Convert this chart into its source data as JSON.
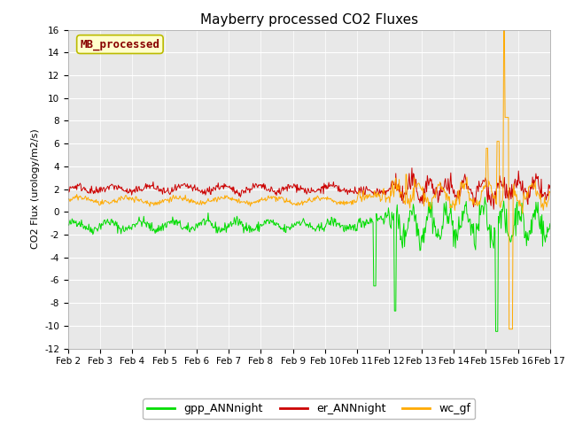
{
  "title": "Mayberry processed CO2 Fluxes",
  "ylabel": "CO2 Flux (urology/m2/s)",
  "ylim": [
    -12,
    16
  ],
  "yticks": [
    -12,
    -10,
    -8,
    -6,
    -4,
    -2,
    0,
    2,
    4,
    6,
    8,
    10,
    12,
    14,
    16
  ],
  "date_labels": [
    "Feb 2",
    "Feb 3",
    "Feb 4",
    "Feb 5",
    "Feb 6",
    "Feb 7",
    "Feb 8",
    "Feb 9",
    "Feb 10",
    "Feb 11",
    "Feb 12",
    "Feb 13",
    "Feb 14",
    "Feb 15",
    "Feb 16",
    "Feb 17"
  ],
  "colors": {
    "gpp": "#00dd00",
    "er": "#cc0000",
    "wc": "#ffaa00",
    "fig_bg": "#ffffff",
    "plot_bg": "#e8e8e8",
    "legend_box_bg": "#ffffcc",
    "legend_box_edge": "#bbbb00",
    "legend_text": "#880000",
    "grid": "#ffffff"
  },
  "legend_entries": [
    "gpp_ANNnight",
    "er_ANNnight",
    "wc_gf"
  ],
  "annotation": "MB_processed",
  "linewidth": 0.7,
  "n_points_per_day": 48,
  "n_days": 15,
  "title_fontsize": 11,
  "tick_fontsize": 7.5,
  "ylabel_fontsize": 8,
  "legend_fontsize": 9
}
